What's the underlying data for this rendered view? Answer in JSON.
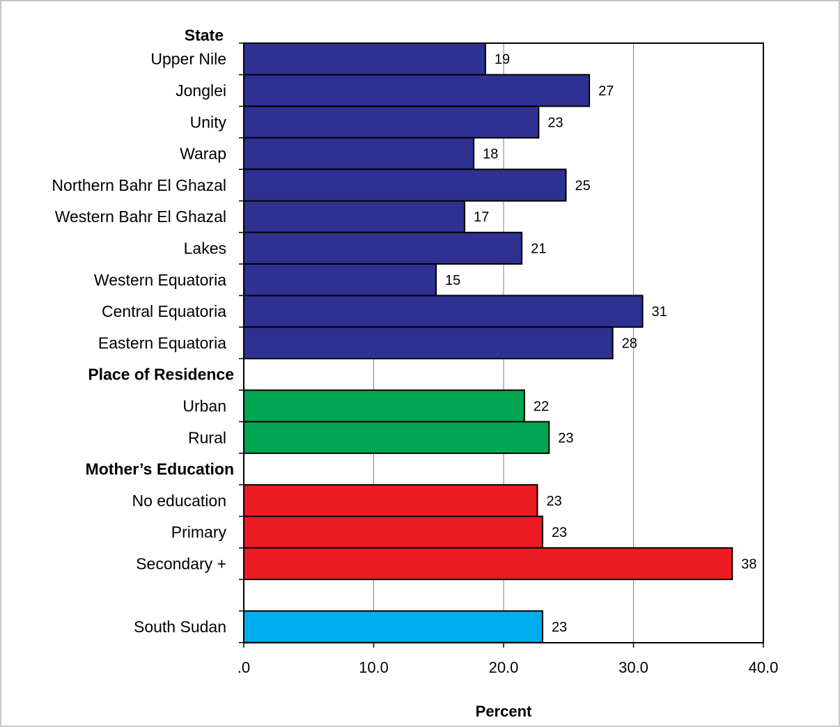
{
  "chart_data": {
    "type": "bar",
    "orientation": "horizontal",
    "xlabel": "Percent",
    "xlim": [
      0,
      40
    ],
    "xticks": [
      ".0",
      "10.0",
      "20.0",
      "30.0",
      "40.0"
    ],
    "grid": "vertical lines",
    "groups": [
      {
        "header": "State",
        "color": "#2e3192",
        "categories": [
          "Upper Nile",
          "Jonglei",
          "Unity",
          "Warap",
          "Northern Bahr El Ghazal",
          "Western Bahr El Ghazal",
          "Lakes",
          "Western Equatoria",
          "Central Equatoria",
          "Eastern Equatoria"
        ],
        "values": [
          18.6,
          26.6,
          22.7,
          17.7,
          24.8,
          17.0,
          21.4,
          14.8,
          30.7,
          28.4
        ],
        "labels": [
          "19",
          "27",
          "23",
          "18",
          "25",
          "17",
          "21",
          "15",
          "31",
          "28"
        ]
      },
      {
        "header": "Place of Residence",
        "color": "#00a651",
        "categories": [
          "Urban",
          "Rural"
        ],
        "values": [
          21.6,
          23.5
        ],
        "labels": [
          "22",
          "23"
        ]
      },
      {
        "header": "Mother’s Education",
        "color": "#ed1c24",
        "categories": [
          "No education",
          "Primary",
          "Secondary +"
        ],
        "values": [
          22.6,
          23.0,
          37.6
        ],
        "labels": [
          "23",
          "23",
          "38"
        ]
      },
      {
        "header": "",
        "color": "#00aeef",
        "categories": [
          "South Sudan"
        ],
        "values": [
          23.0
        ],
        "labels": [
          "23"
        ]
      }
    ]
  }
}
